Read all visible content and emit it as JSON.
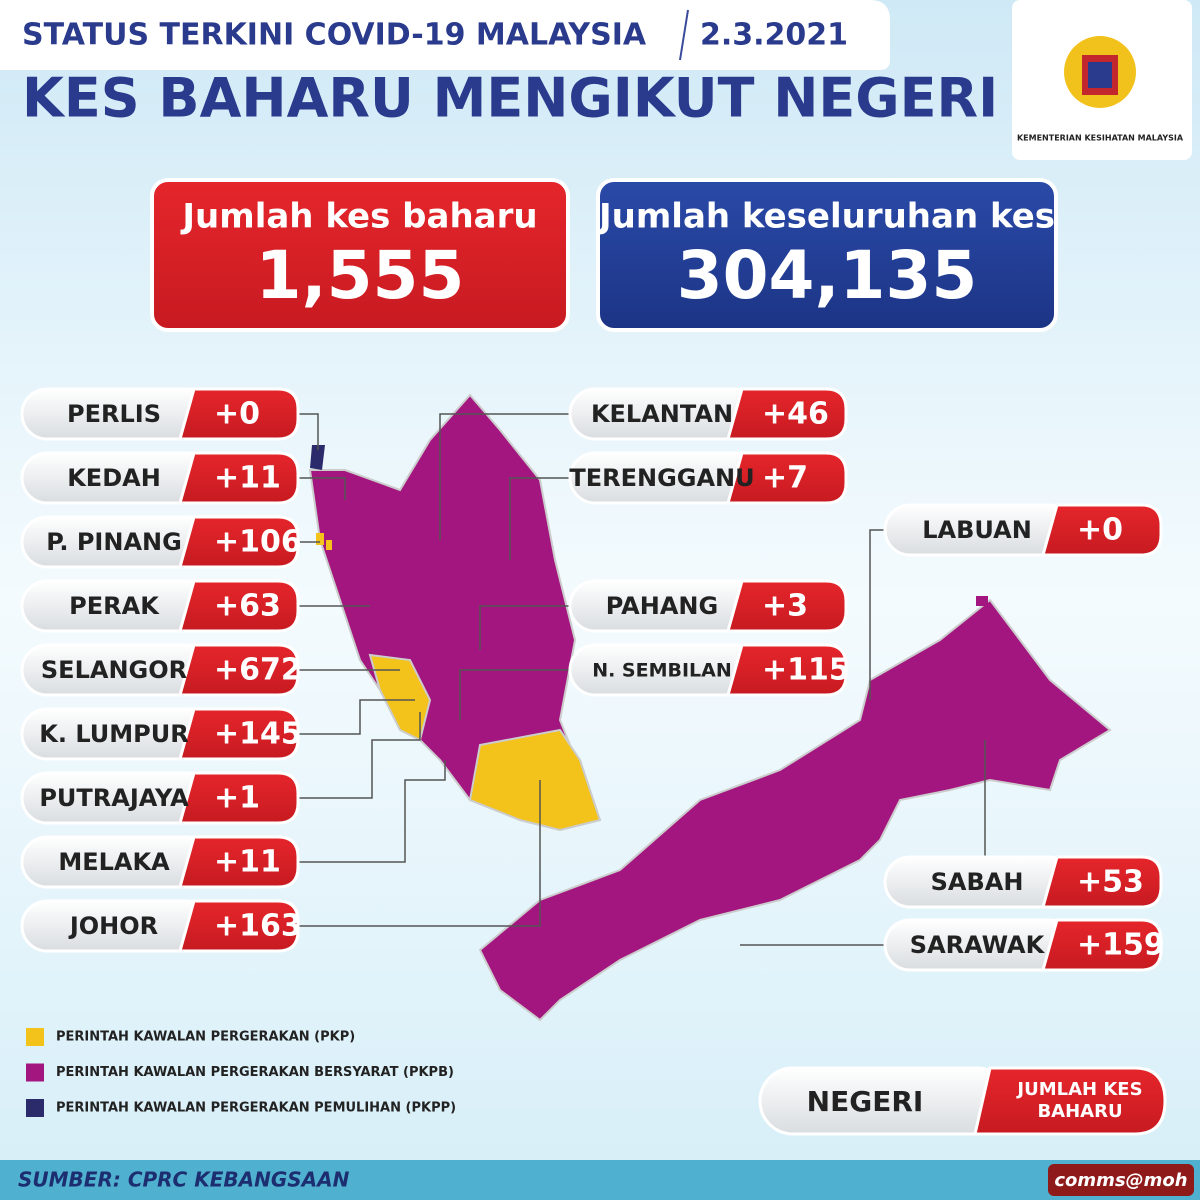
{
  "header": {
    "status": "STATUS TERKINI COVID-19 MALAYSIA",
    "date": "2.3.2021",
    "title": "KES BAHARU MENGIKUT NEGERI",
    "ministry": "KEMENTERIAN KESIHATAN MALAYSIA"
  },
  "totals": {
    "new_label": "Jumlah kes baharu",
    "new_value": "1,555",
    "total_label": "Jumlah keseluruhan kes",
    "total_value": "304,135"
  },
  "states": [
    {
      "name": "PERLIS",
      "cases": "+0"
    },
    {
      "name": "KEDAH",
      "cases": "+11"
    },
    {
      "name": "P. PINANG",
      "cases": "+106"
    },
    {
      "name": "PERAK",
      "cases": "+63"
    },
    {
      "name": "SELANGOR",
      "cases": "+672"
    },
    {
      "name": "K. LUMPUR",
      "cases": "+145"
    },
    {
      "name": "PUTRAJAYA",
      "cases": "+1"
    },
    {
      "name": "MELAKA",
      "cases": "+11"
    },
    {
      "name": "JOHOR",
      "cases": "+163"
    },
    {
      "name": "KELANTAN",
      "cases": "+46"
    },
    {
      "name": "TERENGGANU",
      "cases": "+7"
    },
    {
      "name": "PAHANG",
      "cases": "+3"
    },
    {
      "name": "N. SEMBILAN",
      "cases": "+115"
    },
    {
      "name": "LABUAN",
      "cases": "+0"
    },
    {
      "name": "SABAH",
      "cases": "+53"
    },
    {
      "name": "SARAWAK",
      "cases": "+159"
    }
  ],
  "legend": [
    {
      "label": "PERINTAH KAWALAN PERGERAKAN (PKP)",
      "color": "#f3c21b"
    },
    {
      "label": "PERINTAH KAWALAN PERGERAKAN BERSYARAT (PKPB)",
      "color": "#a3157f"
    },
    {
      "label": "PERINTAH KAWALAN PERGERAKAN PEMULIHAN (PKPP)",
      "color": "#2b2a6b"
    }
  ],
  "key": {
    "left": "NEGERI",
    "right": "JUMLAH KES BAHARU"
  },
  "footer": {
    "source": "SUMBER: CPRC KEBANGSAAN",
    "brand": "comms@moh"
  }
}
